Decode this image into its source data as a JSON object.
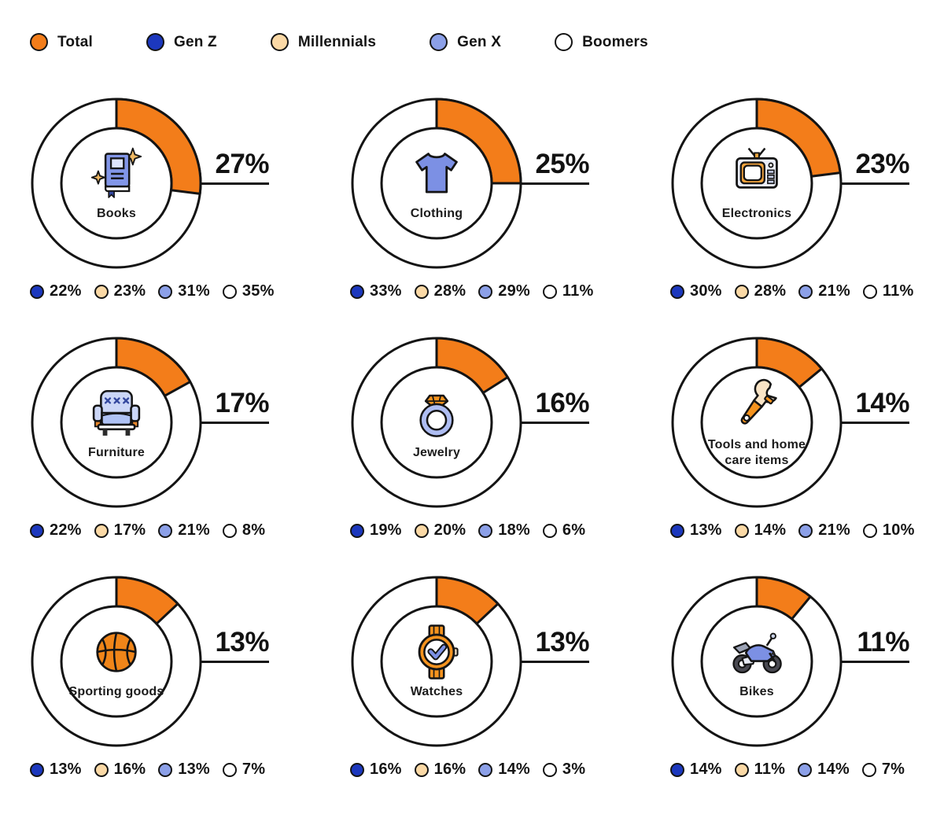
{
  "background": "#FFFFFF",
  "colors": {
    "accent_orange": "#F37D1A",
    "outline_black": "#141414",
    "text": "#121212"
  },
  "legend": {
    "items": [
      {
        "label": "Total",
        "color": "#F37D1A",
        "icon": "total-dot-icon"
      },
      {
        "label": "Gen Z",
        "color": "#1C38BE",
        "icon": "gen-z-dot-icon"
      },
      {
        "label": "Millennials",
        "color": "#FBD9A6",
        "icon": "millennials-dot-icon"
      },
      {
        "label": "Gen X",
        "color": "#8CA0E8",
        "icon": "gen-x-dot-icon"
      },
      {
        "label": "Boomers",
        "color": "#FFFFFF",
        "icon": "boomers-dot-icon"
      }
    ]
  },
  "chart_data": {
    "type": "pie",
    "subtype": "donut-grid",
    "unit": "%",
    "arc_series": "Total",
    "arc_color": "#F37D1A",
    "arc_start": "12-o-clock-clockwise",
    "groups": [
      "Gen Z",
      "Millennials",
      "Gen X",
      "Boomers"
    ],
    "group_colors": {
      "Total": "#F37D1A",
      "Gen Z": "#1C38BE",
      "Millennials": "#FBD9A6",
      "Gen X": "#8CA0E8",
      "Boomers": "#FFFFFF"
    },
    "charts": [
      {
        "category": "Books",
        "icon": "books-icon",
        "total": 27,
        "values": {
          "Gen Z": 22,
          "Millennials": 23,
          "Gen X": 31,
          "Boomers": 35
        }
      },
      {
        "category": "Clothing",
        "icon": "clothing-icon",
        "total": 25,
        "values": {
          "Gen Z": 33,
          "Millennials": 28,
          "Gen X": 29,
          "Boomers": 11
        }
      },
      {
        "category": "Electronics",
        "icon": "electronics-icon",
        "total": 23,
        "values": {
          "Gen Z": 30,
          "Millennials": 28,
          "Gen X": 21,
          "Boomers": 11
        }
      },
      {
        "category": "Furniture",
        "icon": "furniture-icon",
        "total": 17,
        "values": {
          "Gen Z": 22,
          "Millennials": 17,
          "Gen X": 21,
          "Boomers": 8
        }
      },
      {
        "category": "Jewelry",
        "icon": "jewelry-icon",
        "total": 16,
        "values": {
          "Gen Z": 19,
          "Millennials": 20,
          "Gen X": 18,
          "Boomers": 6
        }
      },
      {
        "category": "Tools and home care items",
        "icon": "tools-icon",
        "total": 14,
        "values": {
          "Gen Z": 13,
          "Millennials": 14,
          "Gen X": 21,
          "Boomers": 10
        }
      },
      {
        "category": "Sporting goods",
        "icon": "sporting-goods-icon",
        "total": 13,
        "values": {
          "Gen Z": 13,
          "Millennials": 16,
          "Gen X": 13,
          "Boomers": 7
        }
      },
      {
        "category": "Watches",
        "icon": "watches-icon",
        "total": 13,
        "values": {
          "Gen Z": 16,
          "Millennials": 16,
          "Gen X": 14,
          "Boomers": 3
        }
      },
      {
        "category": "Bikes",
        "icon": "bikes-icon",
        "total": 11,
        "values": {
          "Gen Z": 14,
          "Millennials": 11,
          "Gen X": 14,
          "Boomers": 7
        }
      }
    ]
  }
}
